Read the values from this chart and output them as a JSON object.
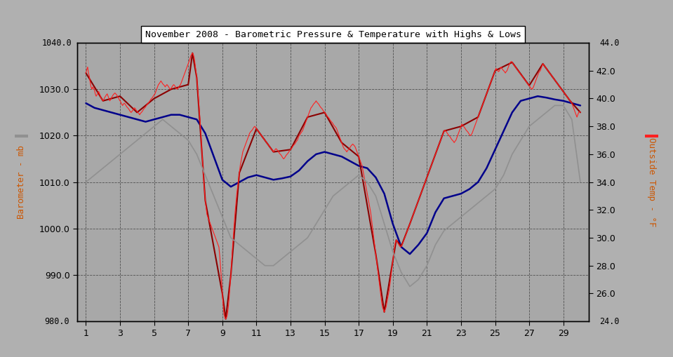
{
  "title": "November 2008 - Barometric Pressure & Temperature with Highs & Lows",
  "bg_color": "#b0b0b0",
  "plot_bg_color": "#a8a8a8",
  "ylabel_left": "Barometer - mb",
  "ylabel_right": "Outside Temp - °F",
  "ylim_left": [
    980.0,
    1040.0
  ],
  "ylim_right": [
    24.0,
    44.0
  ],
  "xlim": [
    0.5,
    30.5
  ],
  "xticks": [
    1,
    3,
    5,
    7,
    9,
    11,
    13,
    15,
    17,
    19,
    21,
    23,
    25,
    27,
    29
  ],
  "yticks_left": [
    990.0,
    1000.0,
    1010.0,
    1020.0,
    1030.0
  ],
  "yticks_right": [
    26.0,
    28.0,
    30.0,
    32.0,
    34.0,
    36.0,
    38.0,
    40.0,
    42.0
  ],
  "pressure_color": "#ff2020",
  "pressure_hi_lo_color": "#8b0000",
  "temp_color": "#909090",
  "barometer_color": "#00008b",
  "pressure_data": [
    1.0,
    1033.5,
    1.05,
    1034.2,
    1.1,
    1034.8,
    1.15,
    1033.5,
    1.2,
    1032.8,
    1.25,
    1031.5,
    1.3,
    1030.5,
    1.35,
    1030.0,
    1.4,
    1030.5,
    1.45,
    1030.2,
    1.5,
    1029.8,
    1.55,
    1029.0,
    1.6,
    1028.5,
    1.65,
    1028.8,
    1.7,
    1029.2,
    1.75,
    1029.5,
    1.8,
    1029.0,
    1.85,
    1028.5,
    1.9,
    1028.0,
    1.95,
    1027.8,
    2.0,
    1027.5,
    2.05,
    1027.8,
    2.1,
    1028.2,
    2.15,
    1028.5,
    2.2,
    1028.8,
    2.25,
    1029.0,
    2.3,
    1028.5,
    2.35,
    1028.0,
    2.4,
    1027.5,
    2.45,
    1027.8,
    2.5,
    1028.2,
    2.55,
    1028.5,
    2.6,
    1028.8,
    2.65,
    1029.0,
    2.7,
    1029.2,
    2.75,
    1029.0,
    2.8,
    1028.8,
    2.85,
    1028.5,
    2.9,
    1028.2,
    2.95,
    1027.8,
    3.0,
    1027.5,
    3.05,
    1027.2,
    3.1,
    1026.8,
    3.15,
    1026.5,
    3.2,
    1026.8,
    3.25,
    1027.0,
    3.3,
    1026.8,
    3.35,
    1026.5,
    3.4,
    1026.2,
    3.45,
    1026.0,
    3.5,
    1025.8,
    3.55,
    1025.5,
    3.6,
    1025.2,
    3.65,
    1025.0,
    3.7,
    1025.2,
    3.75,
    1025.5,
    3.8,
    1025.8,
    3.85,
    1026.0,
    3.9,
    1025.8,
    3.95,
    1025.5,
    4.0,
    1025.2,
    4.05,
    1025.0,
    4.1,
    1024.8,
    4.15,
    1024.5,
    4.2,
    1024.8,
    4.25,
    1025.0,
    4.3,
    1025.2,
    4.35,
    1025.5,
    4.4,
    1025.8,
    4.45,
    1026.0,
    4.5,
    1026.2,
    4.55,
    1026.5,
    4.6,
    1026.8,
    4.65,
    1027.0,
    4.7,
    1027.2,
    4.75,
    1027.5,
    4.8,
    1027.8,
    4.85,
    1028.0,
    4.9,
    1028.2,
    4.95,
    1028.5,
    5.0,
    1028.8,
    5.05,
    1029.0,
    5.1,
    1029.5,
    5.15,
    1030.0,
    5.2,
    1030.5,
    5.25,
    1031.0,
    5.3,
    1031.2,
    5.35,
    1031.5,
    5.4,
    1031.8,
    5.45,
    1031.5,
    5.5,
    1031.2,
    5.55,
    1031.0,
    5.6,
    1030.8,
    5.65,
    1030.5,
    5.7,
    1030.8,
    5.75,
    1031.0,
    5.8,
    1030.8,
    5.85,
    1030.5,
    5.9,
    1030.2,
    5.95,
    1030.0,
    6.0,
    1030.2,
    6.05,
    1030.5,
    6.1,
    1030.8,
    6.15,
    1031.0,
    6.2,
    1030.8,
    6.25,
    1030.5,
    6.3,
    1030.2,
    6.35,
    1030.0,
    6.4,
    1030.2,
    6.45,
    1030.5,
    6.5,
    1030.8,
    6.55,
    1031.0,
    6.6,
    1031.5,
    6.65,
    1032.0,
    6.7,
    1032.5,
    6.75,
    1033.0,
    6.8,
    1033.5,
    6.85,
    1034.0,
    6.9,
    1034.5,
    6.95,
    1035.0,
    7.0,
    1035.5,
    7.05,
    1036.0,
    7.1,
    1036.5,
    7.15,
    1037.2,
    7.2,
    1037.5,
    7.25,
    1037.8,
    7.3,
    1037.5,
    7.35,
    1036.8,
    7.4,
    1035.5,
    7.45,
    1034.0,
    7.5,
    1032.5,
    7.55,
    1030.5,
    7.6,
    1028.0,
    7.65,
    1025.5,
    7.7,
    1023.0,
    7.75,
    1020.0,
    7.8,
    1017.0,
    7.85,
    1014.0,
    7.9,
    1011.0,
    7.95,
    1008.5,
    8.0,
    1006.0,
    8.05,
    1004.5,
    8.1,
    1003.0,
    8.15,
    1002.5,
    8.2,
    1002.0,
    8.25,
    1001.5,
    8.3,
    1001.0,
    8.35,
    1000.5,
    8.4,
    1000.0,
    8.45,
    999.5,
    8.5,
    999.0,
    8.55,
    998.5,
    8.6,
    998.0,
    8.65,
    997.5,
    8.7,
    997.0,
    8.75,
    996.5,
    8.8,
    996.0,
    8.85,
    994.0,
    8.9,
    991.5,
    8.95,
    989.0,
    9.0,
    986.0,
    9.05,
    983.5,
    9.1,
    981.5,
    9.15,
    980.8,
    9.2,
    980.5,
    9.25,
    980.8,
    9.3,
    981.5,
    9.35,
    983.0,
    9.4,
    985.0,
    9.45,
    987.5,
    9.5,
    990.0,
    9.55,
    993.0,
    9.6,
    996.0,
    9.65,
    998.5,
    9.7,
    1001.0,
    9.75,
    1003.5,
    9.8,
    1005.5,
    9.85,
    1007.5,
    9.9,
    1009.0,
    9.95,
    1010.5,
    10.0,
    1012.0,
    10.05,
    1013.5,
    10.1,
    1014.5,
    10.15,
    1015.5,
    10.2,
    1016.5,
    10.25,
    1017.0,
    10.3,
    1017.5,
    10.35,
    1018.0,
    10.4,
    1018.5,
    10.45,
    1019.0,
    10.5,
    1019.5,
    10.55,
    1020.0,
    10.6,
    1020.5,
    10.65,
    1020.8,
    10.7,
    1021.0,
    10.75,
    1021.2,
    10.8,
    1021.5,
    10.85,
    1021.8,
    10.9,
    1022.0,
    10.95,
    1021.8,
    11.0,
    1021.5,
    11.05,
    1021.2,
    11.1,
    1021.0,
    11.15,
    1020.8,
    11.2,
    1020.5,
    11.25,
    1020.2,
    11.3,
    1020.0,
    11.35,
    1019.8,
    11.4,
    1019.5,
    11.45,
    1019.2,
    11.5,
    1019.0,
    11.55,
    1018.8,
    11.6,
    1018.5,
    11.65,
    1018.2,
    11.7,
    1018.0,
    11.75,
    1017.8,
    11.8,
    1017.5,
    11.85,
    1017.2,
    11.9,
    1017.0,
    11.95,
    1016.8,
    12.0,
    1016.5,
    12.05,
    1016.8,
    12.1,
    1017.0,
    12.15,
    1017.2,
    12.2,
    1017.0,
    12.25,
    1016.8,
    12.3,
    1016.5,
    12.35,
    1016.2,
    12.4,
    1016.0,
    12.45,
    1015.8,
    12.5,
    1015.5,
    12.55,
    1015.2,
    12.6,
    1015.0,
    12.65,
    1015.2,
    12.7,
    1015.5,
    12.75,
    1015.8,
    12.8,
    1016.0,
    12.85,
    1016.2,
    12.9,
    1016.5,
    12.95,
    1016.8,
    13.0,
    1017.0,
    13.05,
    1017.2,
    13.1,
    1017.5,
    13.15,
    1017.8,
    13.2,
    1018.0,
    13.25,
    1018.2,
    13.3,
    1018.5,
    13.35,
    1018.8,
    13.4,
    1019.0,
    13.45,
    1019.5,
    13.5,
    1020.0,
    13.55,
    1020.2,
    13.6,
    1020.5,
    13.65,
    1020.8,
    13.7,
    1021.0,
    13.75,
    1021.5,
    13.8,
    1022.0,
    13.85,
    1022.5,
    13.9,
    1023.0,
    13.95,
    1023.5,
    14.0,
    1024.0,
    14.05,
    1024.5,
    14.1,
    1025.0,
    14.15,
    1025.5,
    14.2,
    1026.0,
    14.25,
    1026.2,
    14.3,
    1026.5,
    14.35,
    1026.8,
    14.4,
    1027.0,
    14.45,
    1027.2,
    14.5,
    1027.5,
    14.55,
    1027.2,
    14.6,
    1027.0,
    14.65,
    1026.8,
    14.7,
    1026.5,
    14.75,
    1026.2,
    14.8,
    1026.0,
    14.85,
    1025.8,
    14.9,
    1025.5,
    14.95,
    1025.2,
    15.0,
    1025.0,
    15.05,
    1024.8,
    15.1,
    1024.5,
    15.15,
    1024.2,
    15.2,
    1024.0,
    15.25,
    1023.8,
    15.3,
    1023.5,
    15.35,
    1023.2,
    15.4,
    1023.0,
    15.45,
    1022.8,
    15.5,
    1022.5,
    15.55,
    1022.2,
    15.6,
    1022.0,
    15.65,
    1021.8,
    15.7,
    1021.5,
    15.75,
    1021.0,
    15.8,
    1020.5,
    15.85,
    1020.0,
    15.9,
    1019.5,
    15.95,
    1019.0,
    16.0,
    1018.5,
    16.05,
    1018.0,
    16.1,
    1017.5,
    16.15,
    1017.2,
    16.2,
    1017.0,
    16.25,
    1016.8,
    16.3,
    1016.5,
    16.35,
    1016.8,
    16.4,
    1017.0,
    16.45,
    1017.2,
    16.5,
    1017.5,
    16.55,
    1017.8,
    16.6,
    1018.0,
    16.65,
    1018.2,
    16.7,
    1018.0,
    16.75,
    1017.8,
    16.8,
    1017.5,
    16.85,
    1017.0,
    16.9,
    1016.5,
    16.95,
    1016.0,
    17.0,
    1015.5,
    17.05,
    1015.0,
    17.1,
    1014.5,
    17.15,
    1014.0,
    17.2,
    1013.5,
    17.25,
    1012.5,
    17.3,
    1011.5,
    17.35,
    1010.5,
    17.4,
    1009.5,
    17.45,
    1008.5,
    17.5,
    1007.5,
    17.55,
    1006.5,
    17.6,
    1005.5,
    17.65,
    1004.5,
    17.7,
    1003.5,
    17.75,
    1002.0,
    17.8,
    1000.5,
    17.85,
    999.0,
    17.9,
    997.5,
    17.95,
    996.0,
    18.0,
    994.5,
    18.05,
    993.0,
    18.1,
    991.5,
    18.15,
    990.0,
    18.2,
    988.5,
    18.25,
    987.0,
    18.3,
    985.5,
    18.35,
    984.0,
    18.4,
    983.0,
    18.45,
    982.5,
    18.5,
    982.0,
    18.55,
    982.5,
    18.6,
    983.0,
    18.65,
    984.0,
    18.7,
    985.0,
    18.75,
    986.0,
    18.8,
    987.0,
    18.85,
    988.5,
    18.9,
    990.0,
    18.95,
    991.5,
    19.0,
    993.0,
    19.05,
    994.5,
    19.1,
    996.0,
    19.15,
    997.0,
    19.2,
    997.5,
    19.25,
    997.2,
    19.3,
    996.8,
    19.35,
    996.5,
    19.4,
    996.2,
    19.45,
    996.0,
    19.5,
    996.2,
    19.55,
    996.5,
    19.6,
    997.0,
    19.65,
    997.5,
    19.7,
    998.0,
    19.75,
    998.5,
    19.8,
    999.0,
    19.85,
    999.5,
    19.9,
    1000.0,
    19.95,
    1000.5,
    20.0,
    1001.0,
    20.05,
    1001.5,
    20.1,
    1002.0,
    20.15,
    1002.5,
    20.2,
    1003.0,
    20.25,
    1003.5,
    20.3,
    1004.0,
    20.35,
    1004.5,
    20.4,
    1005.0,
    20.45,
    1005.5,
    20.5,
    1006.0,
    20.55,
    1006.5,
    20.6,
    1007.0,
    20.65,
    1007.5,
    20.7,
    1008.0,
    20.75,
    1008.5,
    20.8,
    1009.0,
    20.85,
    1009.5,
    20.9,
    1010.0,
    20.95,
    1010.5,
    21.0,
    1011.0,
    21.05,
    1011.5,
    21.1,
    1012.0,
    21.15,
    1012.5,
    21.2,
    1013.0,
    21.25,
    1013.5,
    21.3,
    1014.0,
    21.35,
    1014.5,
    21.4,
    1015.0,
    21.45,
    1015.5,
    21.5,
    1016.0,
    21.55,
    1016.5,
    21.6,
    1017.0,
    21.65,
    1017.5,
    21.7,
    1018.0,
    21.75,
    1018.5,
    21.8,
    1019.0,
    21.85,
    1019.5,
    21.9,
    1020.0,
    21.95,
    1020.5,
    22.0,
    1021.0,
    22.05,
    1021.2,
    22.1,
    1021.0,
    22.15,
    1020.8,
    22.2,
    1020.5,
    22.25,
    1020.2,
    22.3,
    1020.0,
    22.35,
    1019.8,
    22.4,
    1019.5,
    22.45,
    1019.2,
    22.5,
    1019.0,
    22.55,
    1018.8,
    22.6,
    1018.5,
    22.65,
    1018.8,
    22.7,
    1019.0,
    22.75,
    1019.5,
    22.8,
    1020.0,
    22.85,
    1020.5,
    22.9,
    1021.0,
    22.95,
    1021.5,
    23.0,
    1022.0,
    23.05,
    1022.5,
    23.1,
    1022.2,
    23.15,
    1022.0,
    23.2,
    1021.8,
    23.25,
    1021.5,
    23.3,
    1021.2,
    23.35,
    1021.0,
    23.4,
    1020.8,
    23.45,
    1020.5,
    23.5,
    1020.2,
    23.55,
    1020.0,
    23.6,
    1020.2,
    23.65,
    1020.5,
    23.7,
    1021.0,
    23.75,
    1021.5,
    23.8,
    1022.0,
    23.85,
    1022.5,
    23.9,
    1023.0,
    23.95,
    1023.5,
    24.0,
    1024.0,
    24.05,
    1024.5,
    24.1,
    1025.0,
    24.15,
    1025.5,
    24.2,
    1026.0,
    24.25,
    1026.5,
    24.3,
    1027.0,
    24.35,
    1027.5,
    24.4,
    1028.0,
    24.45,
    1028.5,
    24.5,
    1029.0,
    24.55,
    1029.5,
    24.6,
    1030.0,
    24.65,
    1030.5,
    24.7,
    1031.0,
    24.75,
    1031.5,
    24.8,
    1032.0,
    24.85,
    1032.5,
    24.9,
    1033.0,
    24.95,
    1033.5,
    25.0,
    1034.0,
    25.05,
    1034.5,
    25.1,
    1034.2,
    25.15,
    1034.0,
    25.2,
    1033.8,
    25.25,
    1034.0,
    25.3,
    1034.5,
    25.35,
    1034.8,
    25.4,
    1034.5,
    25.45,
    1034.2,
    25.5,
    1034.0,
    25.55,
    1033.8,
    25.6,
    1033.5,
    25.65,
    1033.8,
    25.7,
    1034.0,
    25.75,
    1034.5,
    25.8,
    1035.0,
    25.85,
    1035.5,
    25.9,
    1035.8,
    25.95,
    1036.0,
    26.0,
    1035.8,
    26.05,
    1035.5,
    26.1,
    1035.2,
    26.15,
    1035.0,
    26.2,
    1034.8,
    26.25,
    1034.5,
    26.3,
    1034.2,
    26.35,
    1034.0,
    26.4,
    1033.8,
    26.45,
    1033.5,
    26.5,
    1033.2,
    26.55,
    1033.0,
    26.6,
    1032.8,
    26.65,
    1032.5,
    26.7,
    1032.2,
    26.75,
    1032.0,
    26.8,
    1031.8,
    26.85,
    1031.5,
    26.9,
    1031.2,
    26.95,
    1031.0,
    27.0,
    1030.8,
    27.05,
    1030.5,
    27.1,
    1030.2,
    27.15,
    1030.0,
    27.2,
    1030.2,
    27.25,
    1030.5,
    27.3,
    1031.0,
    27.35,
    1031.5,
    27.4,
    1032.0,
    27.45,
    1032.5,
    27.5,
    1033.0,
    27.55,
    1033.5,
    27.6,
    1033.8,
    27.65,
    1034.0,
    27.7,
    1034.5,
    27.75,
    1035.0,
    27.8,
    1035.5,
    27.85,
    1035.2,
    27.9,
    1035.0,
    27.95,
    1034.8,
    28.0,
    1034.5,
    28.05,
    1034.2,
    28.1,
    1034.0,
    28.15,
    1033.8,
    28.2,
    1033.5,
    28.25,
    1033.2,
    28.3,
    1033.0,
    28.35,
    1032.8,
    28.4,
    1032.5,
    28.45,
    1032.2,
    28.5,
    1032.0,
    28.55,
    1031.8,
    28.6,
    1031.5,
    28.65,
    1031.2,
    28.7,
    1031.0,
    28.75,
    1030.8,
    28.8,
    1030.5,
    28.85,
    1030.2,
    28.9,
    1030.0,
    28.95,
    1029.8,
    29.0,
    1029.5,
    29.05,
    1029.2,
    29.1,
    1029.0,
    29.15,
    1028.8,
    29.2,
    1028.5,
    29.25,
    1028.2,
    29.3,
    1028.0,
    29.35,
    1027.8,
    29.4,
    1027.5,
    29.45,
    1027.2,
    29.5,
    1027.0,
    29.55,
    1026.5,
    29.6,
    1026.0,
    29.65,
    1025.5,
    29.7,
    1025.0,
    29.75,
    1024.5,
    29.8,
    1024.0,
    29.85,
    1024.5,
    29.9,
    1025.0,
    29.95,
    1025.2,
    30.0,
    1025.0
  ],
  "barometer_data": [
    1.0,
    1027.0,
    1.5,
    1026.0,
    2.0,
    1025.5,
    2.5,
    1025.0,
    3.0,
    1024.5,
    3.5,
    1024.0,
    4.0,
    1023.5,
    4.5,
    1023.0,
    5.0,
    1023.5,
    5.5,
    1024.0,
    6.0,
    1024.5,
    6.5,
    1024.5,
    7.0,
    1024.0,
    7.5,
    1023.5,
    8.0,
    1020.5,
    8.5,
    1015.5,
    9.0,
    1010.5,
    9.5,
    1009.0,
    10.0,
    1010.0,
    10.5,
    1011.0,
    11.0,
    1011.5,
    11.5,
    1011.0,
    12.0,
    1010.5,
    12.5,
    1010.8,
    13.0,
    1011.2,
    13.5,
    1012.5,
    14.0,
    1014.5,
    14.5,
    1016.0,
    15.0,
    1016.5,
    15.5,
    1016.0,
    16.0,
    1015.5,
    16.5,
    1014.5,
    17.0,
    1013.5,
    17.5,
    1013.0,
    18.0,
    1011.0,
    18.5,
    1007.5,
    19.0,
    1001.0,
    19.5,
    996.0,
    20.0,
    994.5,
    20.5,
    996.5,
    21.0,
    999.0,
    21.5,
    1003.5,
    22.0,
    1006.5,
    22.5,
    1007.0,
    23.0,
    1007.5,
    23.5,
    1008.5,
    24.0,
    1010.0,
    24.5,
    1013.0,
    25.0,
    1017.0,
    25.5,
    1021.0,
    26.0,
    1025.0,
    26.5,
    1027.5,
    27.0,
    1028.0,
    27.5,
    1028.5,
    28.0,
    1028.2,
    28.5,
    1027.8,
    29.0,
    1027.5,
    29.5,
    1027.0,
    30.0,
    1026.5
  ],
  "temp_data": [
    1.0,
    34.0,
    1.5,
    34.5,
    2.0,
    35.0,
    2.5,
    35.5,
    3.0,
    36.0,
    3.5,
    36.5,
    4.0,
    37.0,
    4.5,
    37.5,
    5.0,
    38.0,
    5.5,
    38.5,
    6.0,
    38.0,
    6.5,
    37.5,
    7.0,
    37.0,
    7.5,
    36.0,
    8.0,
    34.5,
    8.5,
    33.0,
    9.0,
    31.5,
    9.5,
    30.0,
    10.0,
    29.5,
    10.5,
    29.0,
    11.0,
    28.5,
    11.5,
    28.0,
    12.0,
    28.0,
    12.5,
    28.5,
    13.0,
    29.0,
    13.5,
    29.5,
    14.0,
    30.0,
    14.5,
    31.0,
    15.0,
    32.0,
    15.5,
    33.0,
    16.0,
    33.5,
    16.5,
    34.0,
    17.0,
    34.5,
    17.5,
    34.0,
    18.0,
    33.0,
    18.5,
    31.0,
    19.0,
    29.0,
    19.5,
    27.5,
    20.0,
    26.5,
    20.5,
    27.0,
    21.0,
    28.0,
    21.5,
    29.5,
    22.0,
    30.5,
    22.5,
    31.0,
    23.0,
    31.5,
    23.5,
    32.0,
    24.0,
    32.5,
    24.5,
    33.0,
    25.0,
    33.5,
    25.5,
    34.5,
    26.0,
    36.0,
    26.5,
    37.0,
    27.0,
    38.0,
    27.5,
    38.5,
    28.0,
    39.0,
    28.5,
    39.5,
    29.0,
    39.5,
    29.5,
    38.5,
    30.0,
    34.0
  ],
  "pressure_hi_data": [
    1.0,
    1033.5,
    2.0,
    1027.5,
    3.0,
    1028.5,
    4.0,
    1025.0,
    5.0,
    1028.0,
    6.0,
    1030.0,
    7.0,
    1031.0,
    7.25,
    1037.8,
    7.5,
    1032.5,
    8.0,
    1006.0,
    9.0,
    986.0,
    9.2,
    980.5,
    9.5,
    990.0,
    10.0,
    1012.0,
    11.0,
    1021.5,
    12.0,
    1016.5,
    13.0,
    1017.0,
    14.0,
    1024.0,
    15.0,
    1025.0,
    16.0,
    1018.5,
    17.0,
    1015.5,
    18.0,
    994.5,
    18.5,
    982.0,
    19.0,
    993.0,
    19.2,
    997.5,
    19.5,
    996.2,
    20.0,
    1001.0,
    21.0,
    1011.0,
    22.0,
    1021.0,
    23.0,
    1022.0,
    24.0,
    1024.0,
    25.0,
    1034.0,
    26.0,
    1035.8,
    27.0,
    1030.8,
    27.8,
    1035.5,
    28.0,
    1034.5,
    29.0,
    1029.5,
    29.4,
    1027.5,
    30.0,
    1025.0
  ]
}
